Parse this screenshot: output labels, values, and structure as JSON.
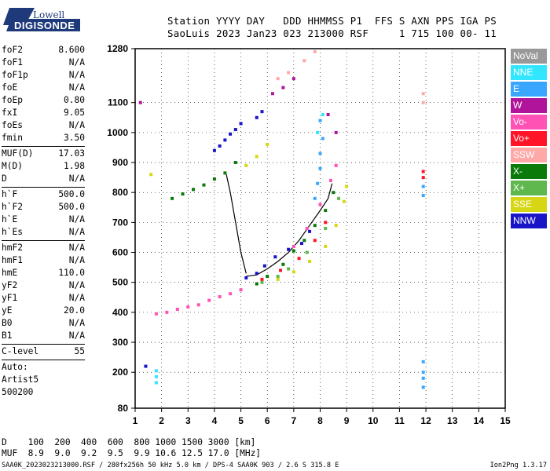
{
  "logo": {
    "line1": "Lowell",
    "line2": "DIGISONDE"
  },
  "header": {
    "line1": "Station YYYY DAY   DDD HHMMSS P1  FFS S AXN PPS IGA PS",
    "line2": "SaoLuis 2023 Jan23 023 213000 RSF     1 715 100 00- 11"
  },
  "params": {
    "group1": [
      {
        "name": "foF2",
        "value": "8.600"
      },
      {
        "name": "foF1",
        "value": "N/A"
      },
      {
        "name": "foF1p",
        "value": "N/A"
      },
      {
        "name": "foE",
        "value": "N/A"
      },
      {
        "name": "foEp",
        "value": "0.80"
      },
      {
        "name": "fxI",
        "value": "9.05"
      },
      {
        "name": "foEs",
        "value": "N/A"
      },
      {
        "name": "fmin",
        "value": "3.50"
      }
    ],
    "group2": [
      {
        "name": "MUF(D)",
        "value": "17.03"
      },
      {
        "name": "M(D)",
        "value": "1.98"
      },
      {
        "name": "D",
        "value": "N/A"
      }
    ],
    "group3": [
      {
        "name": "h`F",
        "value": "500.0"
      },
      {
        "name": "h`F2",
        "value": "500.0"
      },
      {
        "name": "h`E",
        "value": "N/A"
      },
      {
        "name": "h`Es",
        "value": "N/A"
      }
    ],
    "group4": [
      {
        "name": "hmF2",
        "value": "N/A"
      },
      {
        "name": "hmF1",
        "value": "N/A"
      },
      {
        "name": "hmE",
        "value": "110.0"
      },
      {
        "name": "yF2",
        "value": "N/A"
      },
      {
        "name": "yF1",
        "value": "N/A"
      },
      {
        "name": "yE",
        "value": "20.0"
      },
      {
        "name": "B0",
        "value": "N/A"
      },
      {
        "name": "B1",
        "value": "N/A"
      }
    ],
    "group5": [
      {
        "name": "C-level",
        "value": "55"
      }
    ],
    "auto_label": "Auto:",
    "auto_name": "Artist5",
    "auto_version": "500200"
  },
  "legend": [
    {
      "label": "NoVal",
      "color": "#999999"
    },
    {
      "label": "NNE",
      "color": "#33e6ff"
    },
    {
      "label": "E",
      "color": "#3aa6ff"
    },
    {
      "label": "W",
      "color": "#b0149a"
    },
    {
      "label": "Vo-",
      "color": "#ff52b4"
    },
    {
      "label": "Vo+",
      "color": "#ff1428"
    },
    {
      "label": "SSW",
      "color": "#ffa8a8"
    },
    {
      "label": "X-",
      "color": "#0a7a0a"
    },
    {
      "label": "X+",
      "color": "#5fb84e"
    },
    {
      "label": "SSE",
      "color": "#d6d614"
    },
    {
      "label": "NNW",
      "color": "#1a14c8"
    }
  ],
  "footer": {
    "line1": "D    100  200  400  600  800 1000 1500 3000 [km]",
    "line2": "MUF  8.9  9.0  9.2  9.5  9.9 10.6 12.5 17.0 [MHz]"
  },
  "status": "SAA0K_2023023213000.RSF / 280fx256h 50 kHz 5.0 km / DPS-4 SAA0K 903 / 2.6 S 315.8 E",
  "version": "Ion2Png 1.3.17",
  "chart_data": {
    "type": "scatter",
    "title": "",
    "xlabel": "",
    "ylabel": "",
    "xlim": [
      1,
      15
    ],
    "ylim": [
      80,
      1280
    ],
    "x_ticks": [
      1,
      2,
      3,
      4,
      5,
      6,
      7,
      8,
      9,
      10,
      11,
      12,
      13,
      14,
      15
    ],
    "y_ticks": [
      80,
      200,
      300,
      400,
      500,
      600,
      700,
      800,
      900,
      1000,
      1100,
      1280
    ],
    "grid": true,
    "series": [
      {
        "name": "NNW",
        "color": "#1a14c8",
        "points": [
          [
            4.0,
            940
          ],
          [
            4.2,
            955
          ],
          [
            4.4,
            975
          ],
          [
            4.6,
            995
          ],
          [
            4.8,
            1010
          ],
          [
            5.0,
            1030
          ],
          [
            5.6,
            1050
          ],
          [
            5.8,
            1070
          ],
          [
            5.2,
            515
          ],
          [
            5.6,
            530
          ],
          [
            5.9,
            555
          ],
          [
            6.3,
            585
          ],
          [
            6.8,
            610
          ],
          [
            7.3,
            630
          ],
          [
            7.6,
            670
          ],
          [
            1.4,
            220
          ]
        ]
      },
      {
        "name": "E",
        "color": "#3aa6ff",
        "points": [
          [
            7.8,
            780
          ],
          [
            7.9,
            830
          ],
          [
            8.0,
            880
          ],
          [
            8.0,
            930
          ],
          [
            8.1,
            980
          ],
          [
            8.0,
            1040
          ],
          [
            11.9,
            235
          ],
          [
            11.9,
            200
          ],
          [
            11.9,
            180
          ],
          [
            11.9,
            150
          ],
          [
            11.9,
            790
          ],
          [
            11.9,
            820
          ]
        ]
      },
      {
        "name": "NNE",
        "color": "#33e6ff",
        "points": [
          [
            1.8,
            205
          ],
          [
            1.8,
            185
          ],
          [
            1.8,
            165
          ],
          [
            8.1,
            1060
          ],
          [
            7.9,
            1000
          ]
        ]
      },
      {
        "name": "X-",
        "color": "#0a7a0a",
        "points": [
          [
            2.4,
            780
          ],
          [
            2.8,
            795
          ],
          [
            3.2,
            810
          ],
          [
            3.6,
            825
          ],
          [
            4.0,
            845
          ],
          [
            4.4,
            865
          ],
          [
            4.8,
            900
          ],
          [
            5.6,
            495
          ],
          [
            6.0,
            520
          ],
          [
            6.6,
            560
          ],
          [
            7.0,
            605
          ],
          [
            7.4,
            640
          ],
          [
            7.8,
            690
          ],
          [
            8.2,
            740
          ],
          [
            8.5,
            800
          ]
        ]
      },
      {
        "name": "X+",
        "color": "#5fb84e",
        "points": [
          [
            5.8,
            500
          ],
          [
            6.4,
            520
          ],
          [
            6.8,
            545
          ],
          [
            7.5,
            600
          ],
          [
            8.2,
            680
          ],
          [
            8.7,
            780
          ]
        ]
      },
      {
        "name": "SSE",
        "color": "#d6d614",
        "points": [
          [
            5.2,
            890
          ],
          [
            5.6,
            920
          ],
          [
            6.0,
            960
          ],
          [
            1.6,
            860
          ],
          [
            6.4,
            510
          ],
          [
            7.0,
            535
          ],
          [
            7.6,
            570
          ],
          [
            8.2,
            620
          ],
          [
            8.6,
            690
          ],
          [
            8.9,
            770
          ],
          [
            9.0,
            820
          ]
        ]
      },
      {
        "name": "Vo-",
        "color": "#ff52b4",
        "points": [
          [
            1.8,
            395
          ],
          [
            2.2,
            400
          ],
          [
            2.6,
            410
          ],
          [
            3.0,
            418
          ],
          [
            3.4,
            425
          ],
          [
            3.8,
            440
          ],
          [
            4.2,
            452
          ],
          [
            4.6,
            462
          ],
          [
            5.0,
            475
          ],
          [
            7.0,
            620
          ],
          [
            7.5,
            680
          ],
          [
            8.0,
            760
          ],
          [
            8.4,
            840
          ],
          [
            8.6,
            890
          ]
        ]
      },
      {
        "name": "W",
        "color": "#b0149a",
        "points": [
          [
            1.2,
            1100
          ],
          [
            6.2,
            1130
          ],
          [
            6.6,
            1150
          ],
          [
            7.0,
            1180
          ],
          [
            8.6,
            1000
          ],
          [
            8.3,
            1060
          ]
        ]
      },
      {
        "name": "Vo+",
        "color": "#ff1428",
        "points": [
          [
            5.8,
            510
          ],
          [
            6.5,
            540
          ],
          [
            7.2,
            580
          ],
          [
            7.8,
            640
          ],
          [
            8.2,
            700
          ],
          [
            11.9,
            850
          ],
          [
            11.9,
            870
          ]
        ]
      },
      {
        "name": "SSW",
        "color": "#ffa8a8",
        "points": [
          [
            6.8,
            1200
          ],
          [
            7.4,
            1240
          ],
          [
            7.8,
            1270
          ],
          [
            11.9,
            1130
          ],
          [
            11.9,
            1100
          ],
          [
            6.4,
            1180
          ]
        ]
      }
    ],
    "trace_lines": [
      [
        [
          4.45,
          860
        ],
        [
          4.6,
          800
        ],
        [
          4.8,
          700
        ],
        [
          5.0,
          600
        ],
        [
          5.2,
          530
        ]
      ],
      [
        [
          5.2,
          520
        ],
        [
          5.6,
          525
        ],
        [
          6.0,
          545
        ],
        [
          6.4,
          570
        ],
        [
          6.8,
          600
        ],
        [
          7.2,
          640
        ],
        [
          7.6,
          690
        ],
        [
          8.0,
          740
        ],
        [
          8.3,
          780
        ],
        [
          8.45,
          830
        ]
      ]
    ]
  }
}
